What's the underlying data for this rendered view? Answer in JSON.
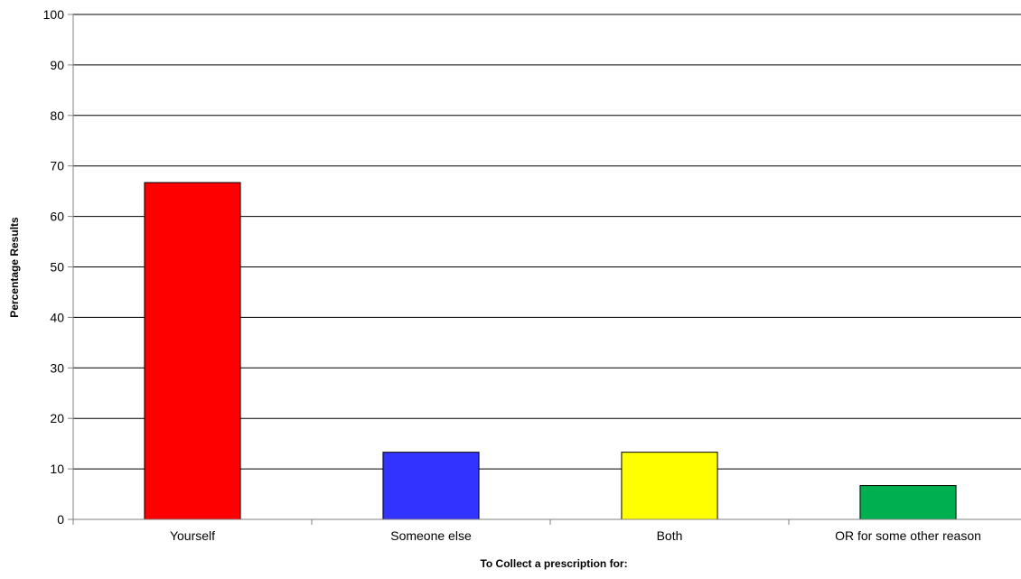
{
  "chart_data": {
    "type": "bar",
    "title": "",
    "xlabel": "To Collect a prescription for:",
    "ylabel": "Percentage Results",
    "categories": [
      "Yourself",
      "Someone else",
      "Both",
      "OR for some other reason"
    ],
    "values": [
      66.7,
      13.3,
      13.3,
      6.7
    ],
    "colors": [
      "#ff0000",
      "#3333ff",
      "#ffff00",
      "#00b050"
    ],
    "ylim": [
      0,
      100
    ],
    "yticks": [
      0,
      10,
      20,
      30,
      40,
      50,
      60,
      70,
      80,
      90,
      100
    ],
    "grid": true,
    "legend": "none"
  }
}
